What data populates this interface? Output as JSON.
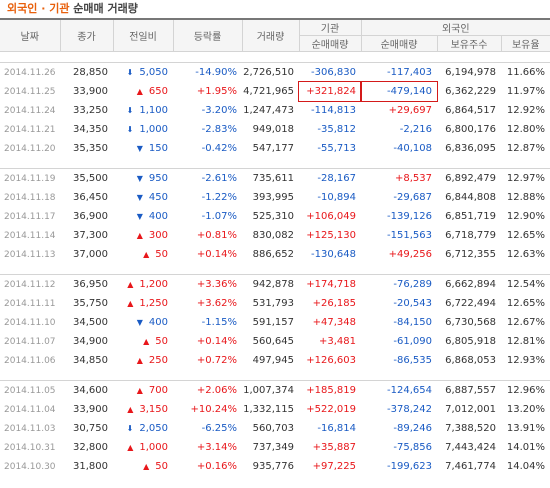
{
  "title": {
    "part1": "외국인 · 기관",
    "part2": "순매매 거래량"
  },
  "headers": {
    "date": "날짜",
    "close": "종가",
    "change": "전일비",
    "rate": "등락률",
    "volume": "거래량",
    "inst": "기관",
    "foreign": "외국인",
    "inst_net": "순매매량",
    "foreign_net": "순매매량",
    "holdings": "보유주수",
    "ratio": "보유율"
  },
  "colors": {
    "up": "#e8161a",
    "down": "#1a5bc4",
    "highlight_box": "#d41a1a"
  },
  "groups": [
    [
      {
        "date": "2014.11.26",
        "close": "28,850",
        "dir": "down",
        "change": "5,050",
        "rate": "-14.90%",
        "volume": "2,726,510",
        "inst": "-306,830",
        "foreign": "-117,403",
        "holdings": "6,194,978",
        "ratio": "11.66%"
      },
      {
        "date": "2014.11.25",
        "close": "33,900",
        "dir": "up",
        "change": "650",
        "rate": "+1.95%",
        "volume": "4,721,965",
        "inst": "+321,824",
        "foreign": "-479,140",
        "holdings": "6,362,229",
        "ratio": "11.97%",
        "highlight": true
      },
      {
        "date": "2014.11.24",
        "close": "33,250",
        "dir": "down",
        "change": "1,100",
        "rate": "-3.20%",
        "volume": "1,247,473",
        "inst": "-114,813",
        "foreign": "+29,697",
        "holdings": "6,864,517",
        "ratio": "12.92%"
      },
      {
        "date": "2014.11.21",
        "close": "34,350",
        "dir": "down",
        "change": "1,000",
        "rate": "-2.83%",
        "volume": "949,018",
        "inst": "-35,812",
        "foreign": "-2,216",
        "holdings": "6,800,176",
        "ratio": "12.80%"
      },
      {
        "date": "2014.11.20",
        "close": "35,350",
        "dir": "down",
        "change": "150",
        "rate": "-0.42%",
        "volume": "547,177",
        "inst": "-55,713",
        "foreign": "-40,108",
        "holdings": "6,836,095",
        "ratio": "12.87%"
      }
    ],
    [
      {
        "date": "2014.11.19",
        "close": "35,500",
        "dir": "down",
        "change": "950",
        "rate": "-2.61%",
        "volume": "735,611",
        "inst": "-28,167",
        "foreign": "+8,537",
        "holdings": "6,892,479",
        "ratio": "12.97%"
      },
      {
        "date": "2014.11.18",
        "close": "36,450",
        "dir": "down",
        "change": "450",
        "rate": "-1.22%",
        "volume": "393,995",
        "inst": "-10,894",
        "foreign": "-29,687",
        "holdings": "6,844,808",
        "ratio": "12.88%"
      },
      {
        "date": "2014.11.17",
        "close": "36,900",
        "dir": "down",
        "change": "400",
        "rate": "-1.07%",
        "volume": "525,310",
        "inst": "+106,049",
        "foreign": "-139,126",
        "holdings": "6,851,719",
        "ratio": "12.90%"
      },
      {
        "date": "2014.11.14",
        "close": "37,300",
        "dir": "up",
        "change": "300",
        "rate": "+0.81%",
        "volume": "830,082",
        "inst": "+125,130",
        "foreign": "-151,563",
        "holdings": "6,718,779",
        "ratio": "12.65%"
      },
      {
        "date": "2014.11.13",
        "close": "37,000",
        "dir": "up",
        "change": "50",
        "rate": "+0.14%",
        "volume": "886,652",
        "inst": "-130,648",
        "foreign": "+49,256",
        "holdings": "6,712,355",
        "ratio": "12.63%"
      }
    ],
    [
      {
        "date": "2014.11.12",
        "close": "36,950",
        "dir": "up",
        "change": "1,200",
        "rate": "+3.36%",
        "volume": "942,878",
        "inst": "+174,718",
        "foreign": "-76,289",
        "holdings": "6,662,894",
        "ratio": "12.54%"
      },
      {
        "date": "2014.11.11",
        "close": "35,750",
        "dir": "up",
        "change": "1,250",
        "rate": "+3.62%",
        "volume": "531,793",
        "inst": "+26,185",
        "foreign": "-20,543",
        "holdings": "6,722,494",
        "ratio": "12.65%"
      },
      {
        "date": "2014.11.10",
        "close": "34,500",
        "dir": "down",
        "change": "400",
        "rate": "-1.15%",
        "volume": "591,157",
        "inst": "+47,348",
        "foreign": "-84,150",
        "holdings": "6,730,568",
        "ratio": "12.67%"
      },
      {
        "date": "2014.11.07",
        "close": "34,900",
        "dir": "up",
        "change": "50",
        "rate": "+0.14%",
        "volume": "560,645",
        "inst": "+3,481",
        "foreign": "-61,090",
        "holdings": "6,805,918",
        "ratio": "12.81%"
      },
      {
        "date": "2014.11.06",
        "close": "34,850",
        "dir": "up",
        "change": "250",
        "rate": "+0.72%",
        "volume": "497,945",
        "inst": "+126,603",
        "foreign": "-86,535",
        "holdings": "6,868,053",
        "ratio": "12.93%"
      }
    ],
    [
      {
        "date": "2014.11.05",
        "close": "34,600",
        "dir": "up",
        "change": "700",
        "rate": "+2.06%",
        "volume": "1,007,374",
        "inst": "+185,819",
        "foreign": "-124,654",
        "holdings": "6,887,557",
        "ratio": "12.96%"
      },
      {
        "date": "2014.11.04",
        "close": "33,900",
        "dir": "up",
        "change": "3,150",
        "rate": "+10.24%",
        "volume": "1,332,115",
        "inst": "+522,019",
        "foreign": "-378,242",
        "holdings": "7,012,001",
        "ratio": "13.20%"
      },
      {
        "date": "2014.11.03",
        "close": "30,750",
        "dir": "down",
        "change": "2,050",
        "rate": "-6.25%",
        "volume": "560,703",
        "inst": "-16,814",
        "foreign": "-89,246",
        "holdings": "7,388,520",
        "ratio": "13.91%"
      },
      {
        "date": "2014.10.31",
        "close": "32,800",
        "dir": "up",
        "change": "1,000",
        "rate": "+3.14%",
        "volume": "737,349",
        "inst": "+35,887",
        "foreign": "-75,856",
        "holdings": "7,443,424",
        "ratio": "14.01%"
      },
      {
        "date": "2014.10.30",
        "close": "31,800",
        "dir": "up",
        "change": "50",
        "rate": "+0.16%",
        "volume": "935,776",
        "inst": "+97,225",
        "foreign": "-199,623",
        "holdings": "7,461,774",
        "ratio": "14.04%"
      }
    ]
  ]
}
